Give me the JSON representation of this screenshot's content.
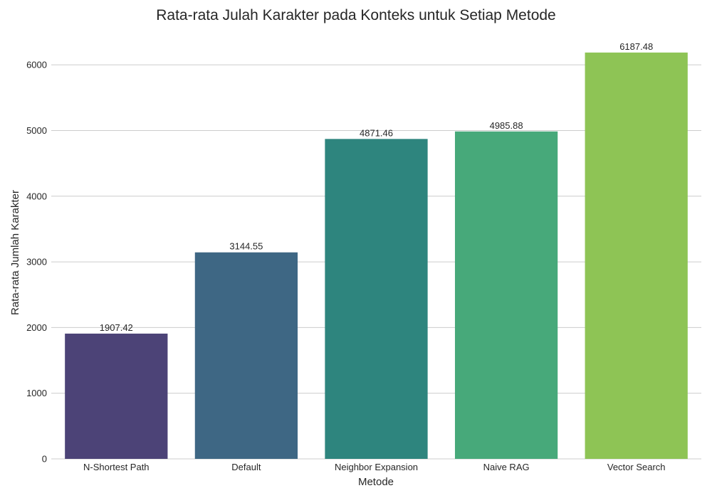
{
  "chart_data": {
    "type": "bar",
    "title": "Rata-rata Julah Karakter pada Konteks untuk Setiap Metode",
    "xlabel": "Metode",
    "ylabel": "Rata-rata Jumlah Karakter",
    "categories": [
      "N-Shortest Path",
      "Default",
      "Neighbor Expansion",
      "Naive RAG",
      "Vector Search"
    ],
    "values": [
      1907.42,
      3144.55,
      4871.46,
      4985.88,
      6187.48
    ],
    "value_labels": [
      "1907.42",
      "3144.55",
      "4871.46",
      "4985.88",
      "6187.48"
    ],
    "colors": [
      "#4c4377",
      "#3e6784",
      "#2e857e",
      "#47a97a",
      "#8ec455"
    ],
    "ylim": [
      0,
      6500
    ],
    "yticks": [
      0,
      1000,
      2000,
      3000,
      4000,
      5000,
      6000
    ],
    "grid": true,
    "legend": "none"
  }
}
